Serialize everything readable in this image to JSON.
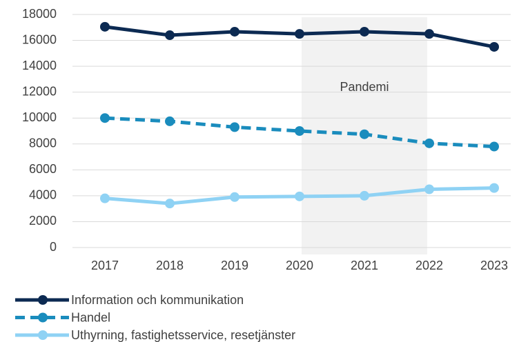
{
  "chart_data": {
    "type": "line",
    "categories": [
      "2017",
      "2018",
      "2019",
      "2020",
      "2021",
      "2022",
      "2023"
    ],
    "series": [
      {
        "name": "Information och kommunikation",
        "color": "#0c2a52",
        "style": "solid",
        "values": [
          17050,
          16400,
          16670,
          16500,
          16670,
          16500,
          15500
        ]
      },
      {
        "name": "Handel",
        "color": "#1a8cbd",
        "style": "dashed",
        "values": [
          10000,
          9750,
          9300,
          9000,
          8750,
          8050,
          7800
        ]
      },
      {
        "name": "Uthyrning, fastighetsservice, resetjänster",
        "color": "#8fd2f4",
        "style": "solid",
        "values": [
          3800,
          3400,
          3900,
          3950,
          4000,
          4500,
          4600
        ]
      }
    ],
    "ylim": [
      0,
      18000
    ],
    "yticks": [
      0,
      2000,
      4000,
      6000,
      8000,
      10000,
      12000,
      14000,
      16000,
      18000
    ],
    "grid": true,
    "legend": "bottom",
    "annotation": {
      "text": "Pandemi",
      "x": [
        "2020",
        "2022"
      ]
    }
  }
}
